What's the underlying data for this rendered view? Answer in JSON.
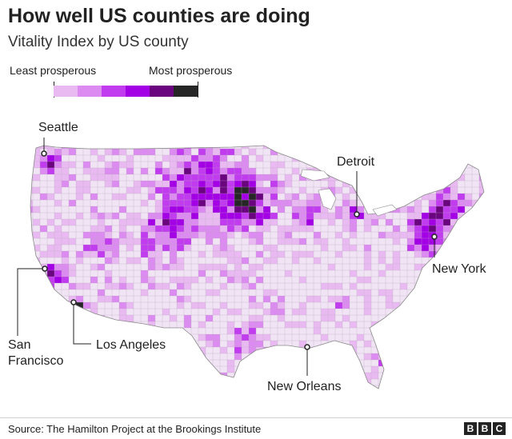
{
  "header": {
    "title": "How well US counties are doing",
    "subtitle": "Vitality Index by US county"
  },
  "legend": {
    "low_label": "Least prosperous",
    "high_label": "Most prosperous",
    "colors": [
      "#f1e4f5",
      "#e9baf1",
      "#dc8cf0",
      "#c23cef",
      "#a400e6",
      "#6b047f",
      "#262626"
    ]
  },
  "map": {
    "base_color": "#f1e4f5",
    "outline_color": "#8a8a8a",
    "cities": [
      {
        "name": "Seattle"
      },
      {
        "name": "Detroit"
      },
      {
        "name": "New York"
      },
      {
        "name": "San Francisco"
      },
      {
        "name": "Los Angeles"
      },
      {
        "name": "New Orleans"
      }
    ]
  },
  "footer": {
    "source": "Source: The Hamilton Project at the Brookings Institute",
    "logo": [
      "B",
      "B",
      "C"
    ]
  }
}
